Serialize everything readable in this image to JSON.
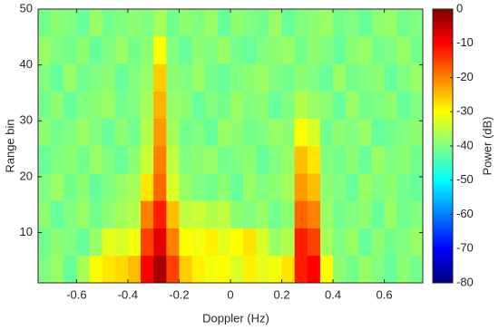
{
  "chart_data": {
    "type": "heatmap",
    "xlabel": "Doppler (Hz)",
    "ylabel": "Range bin",
    "colorbar_label": "Power (dB)",
    "xlim": [
      -0.75,
      0.75
    ],
    "xticks": [
      -0.6,
      -0.4,
      -0.2,
      0,
      0.2,
      0.4,
      0.6
    ],
    "ylim": [
      1,
      50
    ],
    "yticks": [
      10,
      20,
      30,
      40,
      50
    ],
    "clim": [
      -80,
      0
    ],
    "cticks": [
      0,
      -10,
      -20,
      -30,
      -40,
      -50,
      -60,
      -70,
      -80
    ],
    "colormap": "jet",
    "z": [
      [
        -40,
        -38,
        -42,
        -37,
        -30,
        -28,
        -27,
        -25,
        -10,
        -3,
        -15,
        -26,
        -29,
        -31,
        -30,
        -33,
        -29,
        -32,
        -31,
        -28,
        -12,
        -10,
        -30,
        -39,
        -41,
        -38,
        -40,
        -42,
        -39,
        -41
      ],
      [
        -41,
        -39,
        -40,
        -42,
        -38,
        -32,
        -33,
        -31,
        -15,
        -8,
        -20,
        -30,
        -31,
        -29,
        -32,
        -30,
        -28,
        -33,
        -38,
        -36,
        -12,
        -15,
        -37,
        -40,
        -38,
        -42,
        -39,
        -41,
        -40,
        -38
      ],
      [
        -39,
        -42,
        -40,
        -38,
        -41,
        -39,
        -37,
        -36,
        -20,
        -12,
        -25,
        -35,
        -34,
        -36,
        -35,
        -39,
        -40,
        -38,
        -41,
        -39,
        -18,
        -20,
        -38,
        -41,
        -40,
        -39,
        -42,
        -38,
        -41,
        -40
      ],
      [
        -40,
        -38,
        -41,
        -39,
        -42,
        -40,
        -38,
        -37,
        -28,
        -18,
        -33,
        -38,
        -40,
        -41,
        -39,
        -42,
        -38,
        -40,
        -39,
        -37,
        -22,
        -25,
        -39,
        -40,
        -42,
        -38,
        -40,
        -39,
        -41,
        -42
      ],
      [
        -42,
        -40,
        -39,
        -41,
        -38,
        -40,
        -42,
        -39,
        -34,
        -20,
        -35,
        -40,
        -39,
        -38,
        -41,
        -40,
        -39,
        -42,
        -40,
        -38,
        -25,
        -28,
        -40,
        -41,
        -39,
        -42,
        -38,
        -40,
        -39,
        -41
      ],
      [
        -39,
        -41,
        -40,
        -38,
        -40,
        -42,
        -39,
        -41,
        -36,
        -22,
        -37,
        -41,
        -40,
        -42,
        -38,
        -39,
        -41,
        -40,
        -38,
        -39,
        -30,
        -33,
        -41,
        -39,
        -40,
        -38,
        -42,
        -41,
        -40,
        -39
      ],
      [
        -41,
        -39,
        -42,
        -40,
        -39,
        -38,
        -41,
        -40,
        -37,
        -24,
        -38,
        -39,
        -42,
        -40,
        -41,
        -38,
        -40,
        -39,
        -42,
        -40,
        -36,
        -38,
        -39,
        -42,
        -38,
        -41,
        -40,
        -39,
        -42,
        -40
      ],
      [
        -40,
        -42,
        -38,
        -41,
        -40,
        -39,
        -42,
        -40,
        -38,
        -26,
        -39,
        -40,
        -38,
        -41,
        -42,
        -40,
        -39,
        -38,
        -40,
        -41,
        -39,
        -40,
        -42,
        -38,
        -41,
        -40,
        -39,
        -42,
        -40,
        -38
      ],
      [
        -38,
        -40,
        -41,
        -39,
        -42,
        -40,
        -38,
        -41,
        -39,
        -30,
        -40,
        -42,
        -39,
        -40,
        -38,
        -41,
        -42,
        -40,
        -39,
        -38,
        -41,
        -39,
        -40,
        -42,
        -39,
        -38,
        -41,
        -40,
        -38,
        -41
      ],
      [
        -41,
        -39,
        -40,
        -42,
        -38,
        -41,
        -40,
        -39,
        -40,
        -37,
        -41,
        -39,
        -40,
        -38,
        -42,
        -39,
        -40,
        -41,
        -38,
        -42,
        -40,
        -39,
        -38,
        -41,
        -40,
        -42,
        -39,
        -38,
        -41,
        -40
      ]
    ]
  }
}
